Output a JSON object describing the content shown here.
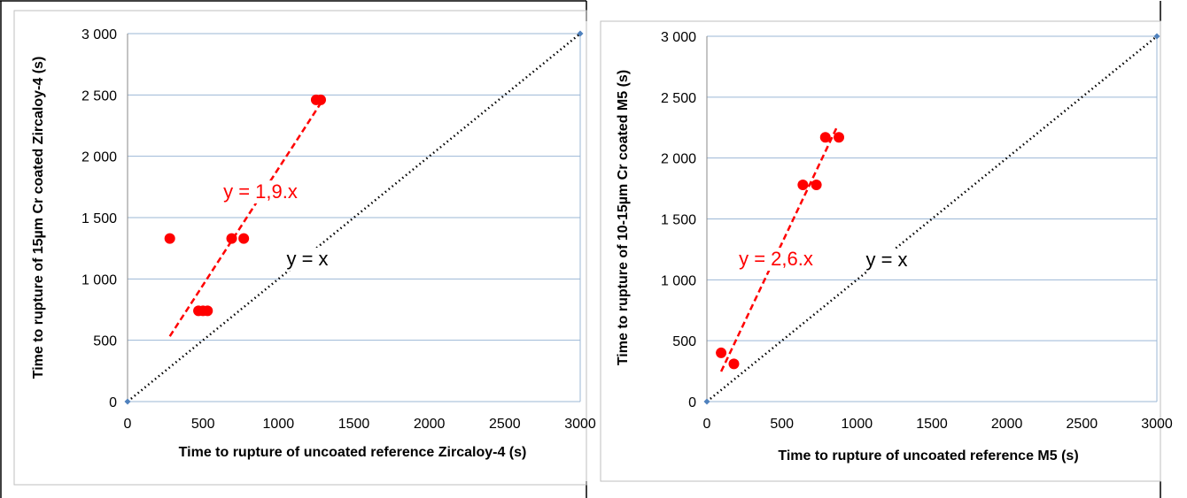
{
  "chart_data": [
    {
      "type": "scatter",
      "xlabel": "Time to rupture of uncoated reference Zircaloy-4 (s)",
      "ylabel": "Time to rupture of 15µm Cr coated Zircaloy-4 (s)",
      "xlim": [
        0,
        3000
      ],
      "ylim": [
        0,
        3000
      ],
      "x_ticks": [
        "0",
        "500",
        "1000",
        "1500",
        "2000",
        "2500",
        "3000"
      ],
      "y_ticks": [
        "0",
        "500",
        "1 000",
        "1 500",
        "2 000",
        "2 500",
        "3 000"
      ],
      "grid": "horizontal",
      "series": [
        {
          "color": "#ff0000",
          "points": [
            [
              280,
              1330
            ],
            [
              470,
              740
            ],
            [
              500,
              740
            ],
            [
              530,
              740
            ],
            [
              690,
              1330
            ],
            [
              770,
              1330
            ],
            [
              1250,
              2460
            ],
            [
              1280,
              2460
            ]
          ]
        },
        {
          "color": "#4f81bd",
          "points": [
            [
              0,
              0
            ],
            [
              3000,
              3000
            ]
          ]
        }
      ],
      "lines": [
        {
          "label": "y = 1,9.x",
          "color": "#ff0000",
          "style": "dashed",
          "x": [
            280,
            1290
          ],
          "y": [
            532,
            2451
          ]
        },
        {
          "label": "y = x",
          "color": "#000000",
          "style": "dotted",
          "x": [
            0,
            3000
          ],
          "y": [
            0,
            3000
          ]
        }
      ]
    },
    {
      "type": "scatter",
      "xlabel": "Time to rupture of uncoated reference M5 (s)",
      "ylabel": "Time to rupture of 10-15µm Cr coated M5 (s)",
      "xlim": [
        0,
        3000
      ],
      "ylim": [
        0,
        3000
      ],
      "x_ticks": [
        "0",
        "500",
        "1000",
        "1500",
        "2000",
        "2500",
        "3000"
      ],
      "y_ticks": [
        "0",
        "500",
        "1 000",
        "1 500",
        "2 000",
        "2 500",
        "3 000"
      ],
      "grid": "horizontal",
      "series": [
        {
          "color": "#ff0000",
          "points": [
            [
              95,
              400
            ],
            [
              180,
              310
            ],
            [
              640,
              1780
            ],
            [
              730,
              1780
            ],
            [
              790,
              2170
            ],
            [
              880,
              2170
            ]
          ]
        },
        {
          "color": "#4f81bd",
          "points": [
            [
              0,
              0
            ],
            [
              3000,
              3000
            ]
          ]
        }
      ],
      "lines": [
        {
          "label": "y = 2,6.x",
          "color": "#ff0000",
          "style": "dashed",
          "x": [
            95,
            870
          ],
          "y": [
            247,
            2262
          ]
        },
        {
          "label": "y = x",
          "color": "#000000",
          "style": "dotted",
          "x": [
            0,
            3000
          ],
          "y": [
            0,
            3000
          ]
        }
      ]
    }
  ]
}
